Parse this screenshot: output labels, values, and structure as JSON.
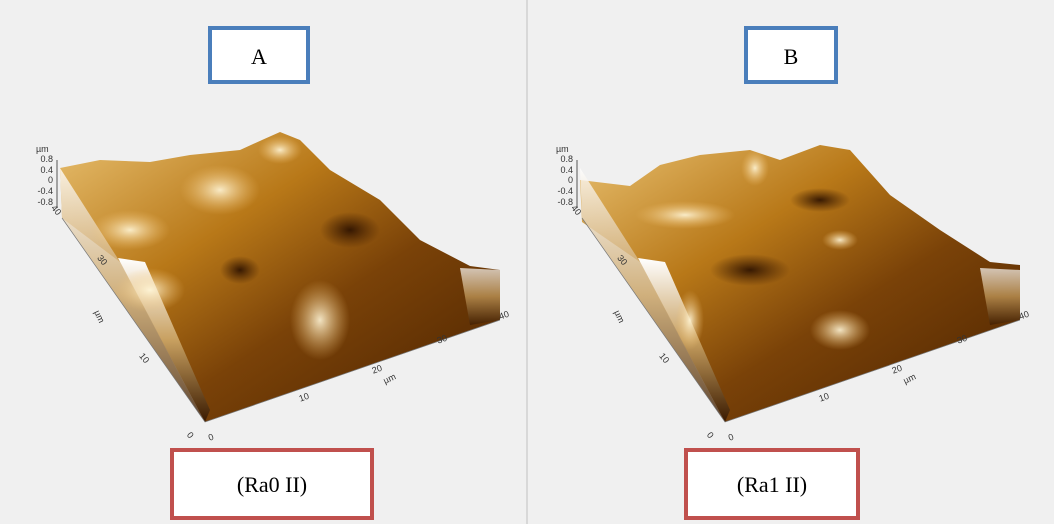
{
  "panels": [
    {
      "label": "A",
      "caption": "(Ra0 II)",
      "z_unit": "µm",
      "z_ticks": [
        "0.8",
        "0.4",
        "0",
        "-0.4",
        "-0.8"
      ],
      "y_ticks": [
        "40",
        "30",
        "10",
        "0"
      ],
      "y_unit": "µm",
      "x_ticks": [
        "0",
        "10",
        "20",
        "30",
        "40"
      ],
      "x_unit": "µm"
    },
    {
      "label": "B",
      "caption": "(Ra1 II)",
      "z_unit": "µm",
      "z_ticks": [
        "0.8",
        "0.4",
        "0",
        "-0.4",
        "-0.8"
      ],
      "y_ticks": [
        "40",
        "30",
        "10",
        "0"
      ],
      "y_unit": "µm",
      "x_ticks": [
        "0",
        "10",
        "20",
        "30",
        "40"
      ],
      "x_unit": "µm"
    }
  ]
}
